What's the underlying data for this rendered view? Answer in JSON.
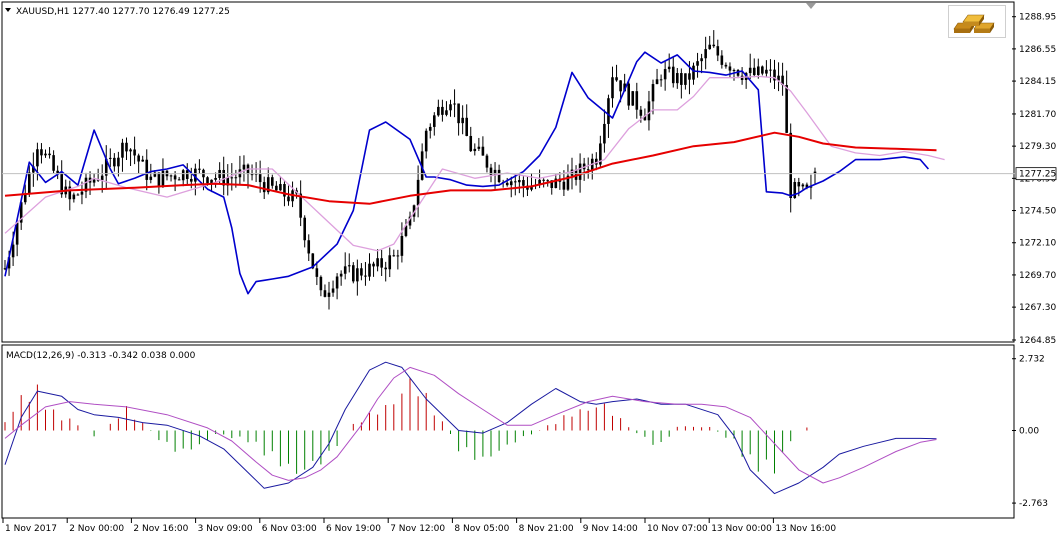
{
  "main_title": "XAUUSD,H1  1277.40 1277.70 1276.49 1277.25",
  "macd_title": "MACD(12,26,9) -0.313 -0.342 0.038 0.000",
  "current_price_label": "1277.25",
  "top_right_marker": "chevron-down-icon",
  "logo_icon": "gold-bars-icon",
  "colors": {
    "grid": "#b4b4b4",
    "candle": "#000000",
    "fast_ma": "#0000cd",
    "slow_ma": "#dda0dd",
    "long_ma": "#e60000",
    "macd_line": "#1a1aa0",
    "signal_line": "#b04fc4",
    "hist_pos": "#c00000",
    "hist_neg": "#008000"
  },
  "chart_data": [
    {
      "type": "candlestick",
      "symbol": "XAUUSD",
      "timeframe": "H1",
      "ohlc_current": {
        "open": 1277.4,
        "high": 1277.7,
        "low": 1276.49,
        "close": 1277.25
      },
      "y_ticks": [
        "1288.95",
        "1286.55",
        "1284.15",
        "1281.70",
        "1279.30",
        "1276.90",
        "1274.50",
        "1272.10",
        "1269.70",
        "1267.30",
        "1264.85"
      ],
      "ylim": [
        1264.85,
        1289.3
      ],
      "grid": false,
      "x_ticks": [
        "1 Nov 2017",
        "2 Nov 00:00",
        "2 Nov 16:00",
        "3 Nov 09:00",
        "6 Nov 03:00",
        "6 Nov 19:00",
        "7 Nov 12:00",
        "8 Nov 05:00",
        "8 Nov 21:00",
        "9 Nov 14:00",
        "10 Nov 07:00",
        "13 Nov 00:00",
        "13 Nov 16:00"
      ],
      "candle_count": 200,
      "close_path": {
        "x": [
          0,
          8,
          16,
          25,
          30,
          36,
          45,
          54,
          60,
          66,
          72,
          78,
          82,
          86,
          92,
          96,
          100,
          104,
          107,
          110,
          115,
          122,
          128,
          134,
          140,
          146,
          150,
          154,
          158,
          162,
          168,
          174,
          178,
          182,
          185,
          188,
          192,
          194,
          198
        ],
        "y": [
          1270.2,
          1279.6,
          1275.2,
          1277.7,
          1279.6,
          1276.8,
          1277.4,
          1276.9,
          1277.3,
          1276.1,
          1275.3,
          1268.0,
          1269.8,
          1269.8,
          1270.3,
          1271.0,
          1273.5,
          1280.5,
          1282.0,
          1283.0,
          1279.2,
          1277.2,
          1276.4,
          1276.4,
          1276.9,
          1278.5,
          1284.8,
          1283.0,
          1281.8,
          1284.8,
          1284.1,
          1286.6,
          1285.6,
          1284.8,
          1284.6,
          1284.8,
          1284.0,
          1276.0,
          1275.8
        ]
      },
      "series": [
        {
          "name": "Fast MA",
          "x": [
            0,
            6,
            10,
            14,
            18,
            22,
            26,
            28,
            32,
            36,
            40,
            44,
            50,
            54,
            56,
            58,
            60,
            62,
            64,
            66,
            70,
            76,
            82,
            86,
            90,
            94,
            100,
            104,
            106,
            110,
            114,
            118,
            122,
            128,
            132,
            136,
            140,
            144,
            150,
            154,
            156,
            158,
            162,
            166,
            170,
            174,
            178,
            182,
            186,
            188,
            192,
            194,
            196,
            198,
            202,
            206,
            210,
            216,
            222,
            226,
            228
          ],
          "y": [
            1269.6,
            1278.1,
            1276.6,
            1277.4,
            1276.4,
            1280.5,
            1277.6,
            1276.5,
            1276.9,
            1277.4,
            1277.6,
            1277.9,
            1276.1,
            1275.5,
            1273.2,
            1269.8,
            1268.3,
            1269.2,
            1269.3,
            1269.4,
            1269.6,
            1270.3,
            1272.0,
            1274.5,
            1280.5,
            1281.1,
            1279.8,
            1277.0,
            1277.0,
            1276.8,
            1276.4,
            1276.3,
            1276.4,
            1277.4,
            1278.6,
            1280.7,
            1284.8,
            1282.9,
            1281.4,
            1284.2,
            1285.6,
            1286.3,
            1285.5,
            1286.1,
            1284.9,
            1284.8,
            1284.6,
            1284.9,
            1283.5,
            1275.9,
            1275.8,
            1275.6,
            1275.8,
            1276.2,
            1276.7,
            1277.4,
            1278.3,
            1278.3,
            1278.5,
            1278.3,
            1277.6
          ]
        },
        {
          "name": "Slow MA",
          "x": [
            0,
            10,
            18,
            22,
            30,
            40,
            52,
            60,
            66,
            74,
            80,
            86,
            92,
            96,
            100,
            108,
            116,
            124,
            132,
            140,
            148,
            154,
            160,
            166,
            170,
            174,
            180,
            186,
            190,
            194,
            198,
            204,
            210,
            216,
            222,
            228,
            232
          ],
          "y": [
            1272.8,
            1275.5,
            1276.3,
            1276.9,
            1276.2,
            1275.5,
            1276.6,
            1277.6,
            1277.6,
            1275.3,
            1273.6,
            1271.9,
            1271.5,
            1272.0,
            1273.9,
            1277.6,
            1276.9,
            1277.3,
            1276.9,
            1277.4,
            1278.3,
            1280.6,
            1282.0,
            1282.0,
            1283.0,
            1284.4,
            1284.4,
            1284.5,
            1284.4,
            1283.4,
            1281.8,
            1279.3,
            1278.8,
            1278.6,
            1278.9,
            1278.6,
            1278.3
          ]
        },
        {
          "name": "Long MA",
          "x": [
            0,
            16,
            32,
            44,
            52,
            60,
            70,
            80,
            90,
            100,
            110,
            120,
            130,
            140,
            150,
            160,
            170,
            180,
            190,
            196,
            202,
            210,
            220,
            230
          ],
          "y": [
            1275.6,
            1276.0,
            1276.2,
            1276.4,
            1276.5,
            1276.4,
            1275.7,
            1275.2,
            1275.0,
            1275.6,
            1276.0,
            1276.0,
            1276.3,
            1277.0,
            1278.0,
            1278.6,
            1279.3,
            1279.6,
            1280.3,
            1280.0,
            1279.5,
            1279.2,
            1279.1,
            1279.0
          ]
        }
      ]
    },
    {
      "type": "macd",
      "title": "MACD(12,26,9) -0.313 -0.342 0.038 0.000",
      "y_ticks": [
        "2.732",
        "0.00",
        "-2.763"
      ],
      "ylim": [
        -2.95,
        2.95
      ],
      "x_ticks": [
        "1 Nov 2017",
        "2 Nov 00:00",
        "2 Nov 16:00",
        "3 Nov 09:00",
        "6 Nov 03:00",
        "6 Nov 19:00",
        "7 Nov 12:00",
        "8 Nov 05:00",
        "8 Nov 21:00",
        "9 Nov 14:00",
        "10 Nov 07:00",
        "13 Nov 00:00",
        "13 Nov 16:00"
      ],
      "histogram_profile": {
        "x": [
          0,
          4,
          8,
          12,
          18,
          22,
          26,
          30,
          34,
          40,
          44,
          50,
          52,
          60,
          72,
          80,
          84,
          88,
          96,
          100,
          104,
          112,
          118,
          126,
          134,
          140,
          148,
          150,
          158,
          162,
          166,
          174,
          180,
          184,
          190,
          194,
          196,
          206,
          212,
          214,
          218,
          224,
          230
        ],
        "y": [
          0.4,
          1.5,
          1.8,
          0.8,
          0.3,
          -0.3,
          0.3,
          1.0,
          0.3,
          -0.7,
          -1.0,
          -0.5,
          -0.15,
          -0.45,
          -2.0,
          -1.2,
          0.0,
          0.5,
          1.3,
          2.3,
          1.5,
          -0.8,
          -1.4,
          -0.5,
          0.2,
          0.8,
          1.2,
          0.8,
          -0.4,
          -0.7,
          0.2,
          0.15,
          -0.5,
          -1.5,
          -1.8,
          -0.5,
          0.0,
          0.8,
          1.2,
          1.4,
          1.1,
          0.5,
          0.1
        ]
      },
      "series": [
        {
          "name": "MACD",
          "x": [
            0,
            4,
            8,
            14,
            18,
            22,
            28,
            34,
            40,
            48,
            54,
            60,
            64,
            70,
            76,
            80,
            84,
            90,
            94,
            98,
            104,
            112,
            118,
            124,
            130,
            136,
            142,
            146,
            150,
            156,
            162,
            168,
            176,
            180,
            184,
            190,
            196,
            202,
            206,
            212,
            220,
            226,
            230
          ],
          "y": [
            -1.3,
            0.5,
            1.5,
            1.3,
            0.8,
            0.6,
            0.5,
            0.3,
            0.2,
            -0.2,
            -0.7,
            -1.6,
            -2.2,
            -2.0,
            -1.4,
            -0.5,
            0.8,
            2.3,
            2.6,
            2.4,
            1.2,
            0.0,
            -0.1,
            0.3,
            1.0,
            1.6,
            1.1,
            1.0,
            1.1,
            1.2,
            1.0,
            1.0,
            0.6,
            -0.2,
            -1.5,
            -2.4,
            -2.0,
            -1.4,
            -0.9,
            -0.6,
            -0.3,
            -0.3,
            -0.313
          ]
        },
        {
          "name": "Signal",
          "x": [
            0,
            4,
            10,
            16,
            22,
            30,
            40,
            50,
            56,
            62,
            66,
            70,
            74,
            78,
            82,
            88,
            92,
            96,
            100,
            106,
            112,
            118,
            124,
            130,
            136,
            144,
            150,
            158,
            166,
            172,
            178,
            184,
            190,
            196,
            202,
            206,
            212,
            220,
            226,
            230
          ],
          "y": [
            -0.3,
            0.2,
            0.9,
            1.1,
            1.0,
            0.9,
            0.6,
            0.1,
            -0.4,
            -1.2,
            -1.7,
            -1.9,
            -1.8,
            -1.5,
            -1.0,
            0.2,
            1.2,
            2.0,
            2.4,
            2.1,
            1.4,
            0.8,
            0.2,
            0.2,
            0.6,
            1.1,
            1.3,
            1.1,
            1.0,
            1.0,
            0.9,
            0.5,
            -0.5,
            -1.5,
            -2.0,
            -1.8,
            -1.4,
            -0.8,
            -0.45,
            -0.342
          ]
        }
      ]
    }
  ]
}
